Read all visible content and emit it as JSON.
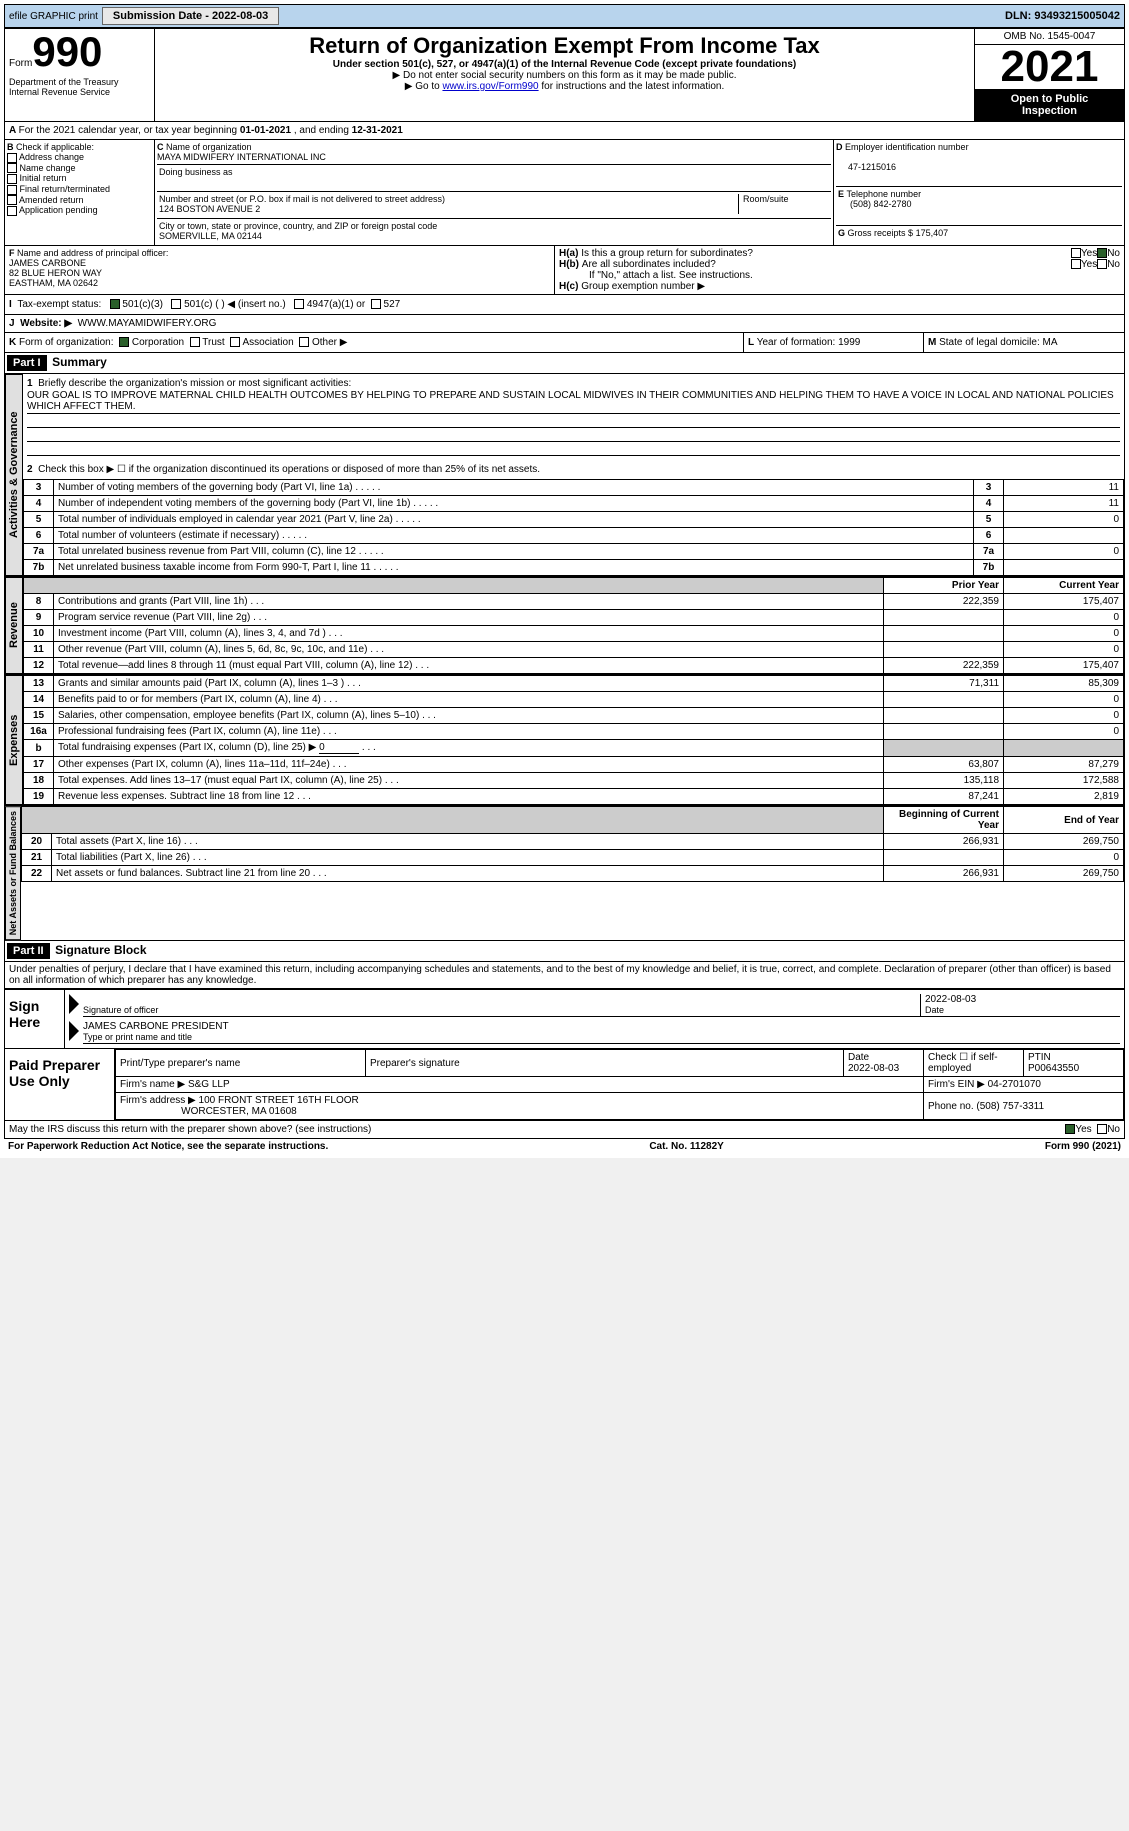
{
  "topbar": {
    "efile": "efile GRAPHIC print",
    "submission_label": "Submission Date - ",
    "submission_date": "2022-08-03",
    "dln_label": "DLN: ",
    "dln": "93493215005042"
  },
  "header": {
    "form_word": "Form",
    "form_number": "990",
    "dept1": "Department of the Treasury",
    "dept2": "Internal Revenue Service",
    "title": "Return of Organization Exempt From Income Tax",
    "sub1": "Under section 501(c), 527, or 4947(a)(1) of the Internal Revenue Code (except private foundations)",
    "sub2": "▶ Do not enter social security numbers on this form as it may be made public.",
    "sub3": "▶ Go to ",
    "link": "www.irs.gov/Form990",
    "sub3_end": " for instructions and the latest information.",
    "omb": "OMB No. 1545-0047",
    "year": "2021",
    "inspect1": "Open to Public",
    "inspect2": "Inspection"
  },
  "sectionA": {
    "line": "For the 2021 calendar year, or tax year beginning ",
    "begin": "01-01-2021",
    "mid": " , and ending ",
    "end": "12-31-2021"
  },
  "sectionB": {
    "label": "Check if applicable:",
    "opts": [
      "Address change",
      "Name change",
      "Initial return",
      "Final return/terminated",
      "Amended return",
      "Application pending"
    ]
  },
  "sectionC": {
    "name_label": "Name of organization",
    "name": "MAYA MIDWIFERY INTERNATIONAL INC",
    "dba_label": "Doing business as",
    "addr_label": "Number and street (or P.O. box if mail is not delivered to street address)",
    "room_label": "Room/suite",
    "addr": "124 BOSTON AVENUE 2",
    "city_label": "City or town, state or province, country, and ZIP or foreign postal code",
    "city": "SOMERVILLE, MA  02144"
  },
  "sectionD": {
    "label": "Employer identification number",
    "ein": "47-1215016"
  },
  "sectionE": {
    "label": "Telephone number",
    "phone": "(508) 842-2780"
  },
  "sectionG": {
    "label": "Gross receipts $",
    "amount": "175,407"
  },
  "sectionF": {
    "label": "Name and address of principal officer:",
    "name": "JAMES CARBONE",
    "addr1": "82 BLUE HERON WAY",
    "addr2": "EASTHAM, MA  02642"
  },
  "sectionH": {
    "ha": "Is this a group return for subordinates?",
    "hb": "Are all subordinates included?",
    "hb_note": "If \"No,\" attach a list. See instructions.",
    "hc": "Group exemption number ▶",
    "yes": "Yes",
    "no": "No"
  },
  "sectionI": {
    "label": "Tax-exempt status:",
    "opts": [
      "501(c)(3)",
      "501(c) (  ) ◀ (insert no.)",
      "4947(a)(1) or",
      "527"
    ]
  },
  "sectionJ": {
    "label": "Website: ▶",
    "url": "WWW.MAYAMIDWIFERY.ORG"
  },
  "sectionK": {
    "label": "Form of organization:",
    "opts": [
      "Corporation",
      "Trust",
      "Association",
      "Other ▶"
    ]
  },
  "sectionL": {
    "label": "Year of formation:",
    "val": "1999"
  },
  "sectionM": {
    "label": "State of legal domicile:",
    "val": "MA"
  },
  "partI": {
    "header": "Part I",
    "title": "Summary",
    "mission_label": "Briefly describe the organization's mission or most significant activities:",
    "mission": "OUR GOAL IS TO IMPROVE MATERNAL CHILD HEALTH OUTCOMES BY HELPING TO PREPARE AND SUSTAIN LOCAL MIDWIVES IN THEIR COMMUNITIES AND HELPING THEM TO HAVE A VOICE IN LOCAL AND NATIONAL POLICIES WHICH AFFECT THEM.",
    "line2": "Check this box ▶ ☐ if the organization discontinued its operations or disposed of more than 25% of its net assets.",
    "vert_labels": [
      "Activities & Governance",
      "Revenue",
      "Expenses",
      "Net Assets or Fund Balances"
    ],
    "col_prior": "Prior Year",
    "col_current": "Current Year",
    "col_begin": "Beginning of Current Year",
    "col_end": "End of Year",
    "gov_rows": [
      {
        "n": "3",
        "d": "Number of voting members of the governing body (Part VI, line 1a)",
        "v": "11"
      },
      {
        "n": "4",
        "d": "Number of independent voting members of the governing body (Part VI, line 1b)",
        "v": "11"
      },
      {
        "n": "5",
        "d": "Total number of individuals employed in calendar year 2021 (Part V, line 2a)",
        "v": "0"
      },
      {
        "n": "6",
        "d": "Total number of volunteers (estimate if necessary)",
        "v": ""
      },
      {
        "n": "7a",
        "d": "Total unrelated business revenue from Part VIII, column (C), line 12",
        "v": "0"
      },
      {
        "n": "7b",
        "d": "Net unrelated business taxable income from Form 990-T, Part I, line 11",
        "v": ""
      }
    ],
    "rev_rows": [
      {
        "n": "8",
        "d": "Contributions and grants (Part VIII, line 1h)",
        "p": "222,359",
        "c": "175,407"
      },
      {
        "n": "9",
        "d": "Program service revenue (Part VIII, line 2g)",
        "p": "",
        "c": "0"
      },
      {
        "n": "10",
        "d": "Investment income (Part VIII, column (A), lines 3, 4, and 7d )",
        "p": "",
        "c": "0"
      },
      {
        "n": "11",
        "d": "Other revenue (Part VIII, column (A), lines 5, 6d, 8c, 9c, 10c, and 11e)",
        "p": "",
        "c": "0"
      },
      {
        "n": "12",
        "d": "Total revenue—add lines 8 through 11 (must equal Part VIII, column (A), line 12)",
        "p": "222,359",
        "c": "175,407"
      }
    ],
    "exp_rows": [
      {
        "n": "13",
        "d": "Grants and similar amounts paid (Part IX, column (A), lines 1–3 )",
        "p": "71,311",
        "c": "85,309"
      },
      {
        "n": "14",
        "d": "Benefits paid to or for members (Part IX, column (A), line 4)",
        "p": "",
        "c": "0"
      },
      {
        "n": "15",
        "d": "Salaries, other compensation, employee benefits (Part IX, column (A), lines 5–10)",
        "p": "",
        "c": "0"
      },
      {
        "n": "16a",
        "d": "Professional fundraising fees (Part IX, column (A), line 11e)",
        "p": "",
        "c": "0"
      },
      {
        "n": "b",
        "d": "Total fundraising expenses (Part IX, column (D), line 25) ▶",
        "p": "shaded",
        "c": "shaded",
        "extra": "0"
      },
      {
        "n": "17",
        "d": "Other expenses (Part IX, column (A), lines 11a–11d, 11f–24e)",
        "p": "63,807",
        "c": "87,279"
      },
      {
        "n": "18",
        "d": "Total expenses. Add lines 13–17 (must equal Part IX, column (A), line 25)",
        "p": "135,118",
        "c": "172,588"
      },
      {
        "n": "19",
        "d": "Revenue less expenses. Subtract line 18 from line 12",
        "p": "87,241",
        "c": "2,819"
      }
    ],
    "net_rows": [
      {
        "n": "20",
        "d": "Total assets (Part X, line 16)",
        "p": "266,931",
        "c": "269,750"
      },
      {
        "n": "21",
        "d": "Total liabilities (Part X, line 26)",
        "p": "",
        "c": "0"
      },
      {
        "n": "22",
        "d": "Net assets or fund balances. Subtract line 21 from line 20",
        "p": "266,931",
        "c": "269,750"
      }
    ]
  },
  "partII": {
    "header": "Part II",
    "title": "Signature Block",
    "perjury": "Under penalties of perjury, I declare that I have examined this return, including accompanying schedules and statements, and to the best of my knowledge and belief, it is true, correct, and complete. Declaration of preparer (other than officer) is based on all information of which preparer has any knowledge.",
    "sign_here": "Sign Here",
    "sig_officer_label": "Signature of officer",
    "date_label": "Date",
    "sig_date": "2022-08-03",
    "officer_name": "JAMES CARBONE  PRESIDENT",
    "officer_type_label": "Type or print name and title",
    "paid_label": "Paid Preparer Use Only",
    "prep_name_label": "Print/Type preparer's name",
    "prep_sig_label": "Preparer's signature",
    "prep_date_label": "Date",
    "prep_date": "2022-08-03",
    "self_emp": "Check ☐ if self-employed",
    "ptin_label": "PTIN",
    "ptin": "P00643550",
    "firm_name_label": "Firm's name     ▶",
    "firm_name": "S&G LLP",
    "firm_ein_label": "Firm's EIN ▶",
    "firm_ein": "04-2701070",
    "firm_addr_label": "Firm's address ▶",
    "firm_addr": "100 FRONT STREET 16TH FLOOR",
    "firm_city": "WORCESTER, MA  01608",
    "firm_phone_label": "Phone no.",
    "firm_phone": "(508) 757-3311",
    "discuss": "May the IRS discuss this return with the preparer shown above? (see instructions)",
    "discuss_yes": "Yes",
    "discuss_no": "No"
  },
  "footer": {
    "left": "For Paperwork Reduction Act Notice, see the separate instructions.",
    "mid": "Cat. No. 11282Y",
    "right": "Form 990 (2021)"
  }
}
